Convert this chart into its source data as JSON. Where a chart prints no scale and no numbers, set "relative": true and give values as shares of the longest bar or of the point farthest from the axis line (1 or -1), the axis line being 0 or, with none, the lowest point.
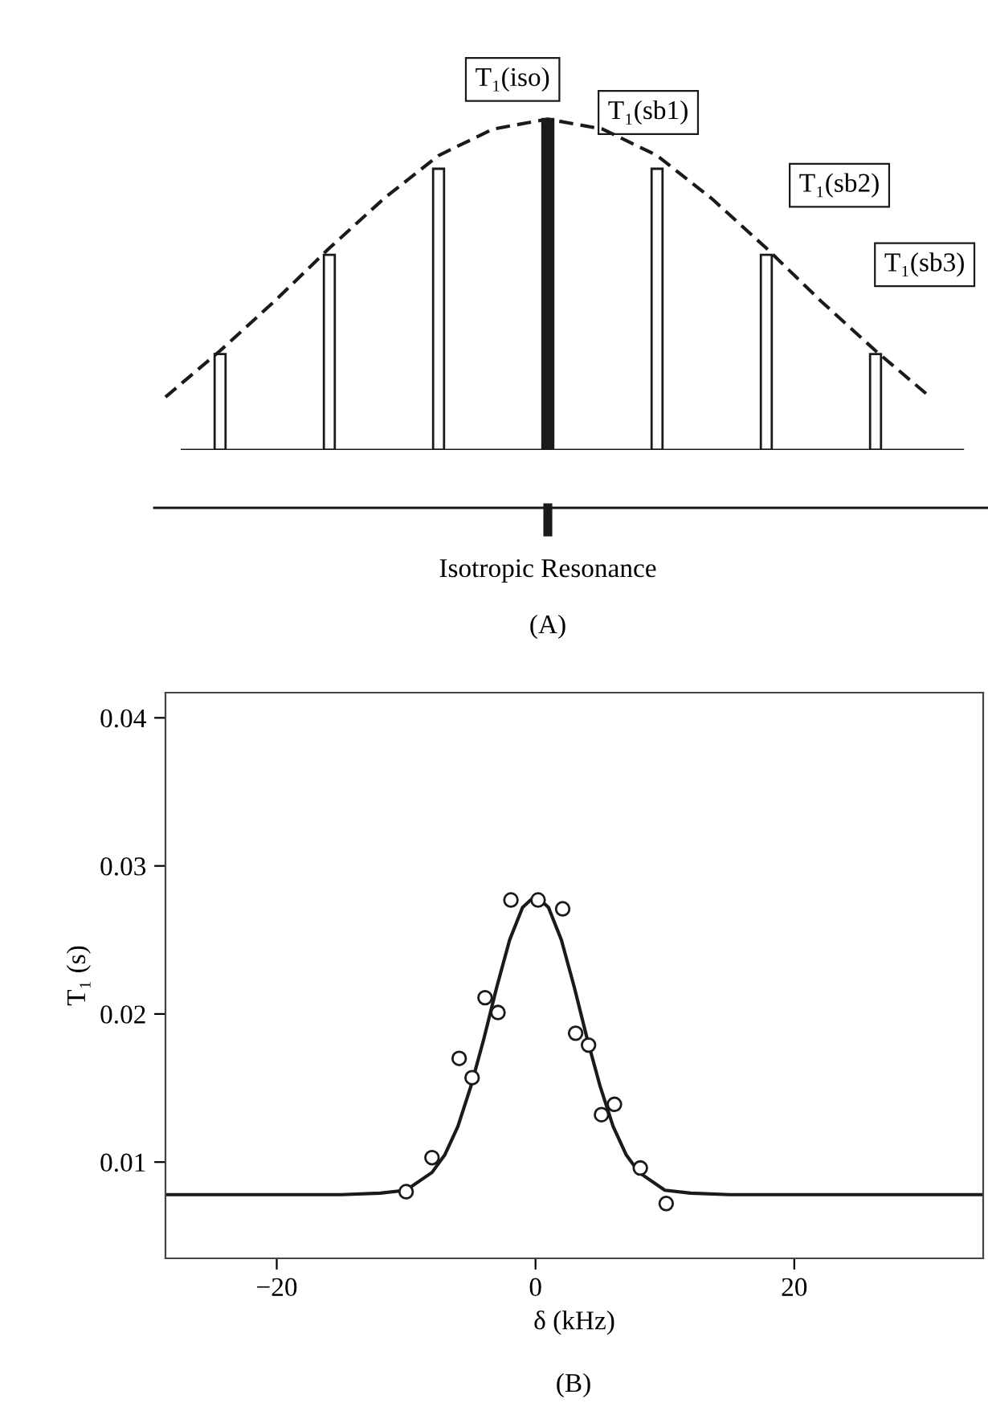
{
  "chart_data": [
    {
      "type": "bar",
      "relative": true,
      "categories": [
        null,
        null,
        null,
        null,
        null,
        null,
        null
      ],
      "colors": [
        "#ffffff",
        "#ffffff",
        "#ffffff",
        "#1a1a1a",
        "#ffffff",
        "#ffffff",
        "#ffffff"
      ],
      "values": [
        0.29,
        0.59,
        0.85,
        1.0,
        0.85,
        0.59,
        0.29
      ],
      "annotations": [
        "T₁(iso)",
        "T₁(sb1)",
        "T₁(sb2)",
        "T₁(sb3)",
        "Isotropic Resonance",
        "(A)"
      ]
    },
    {
      "type": "line",
      "relative": true,
      "categories": [
        null,
        null,
        null,
        null,
        null,
        null,
        null,
        null,
        null,
        null,
        null,
        null,
        null,
        null,
        null
      ],
      "series": [
        {
          "color": "#1a1a1a",
          "values": [
            0.16,
            0.3,
            0.45,
            0.61,
            0.76,
            0.89,
            0.97,
            1.0,
            0.97,
            0.89,
            0.76,
            0.61,
            0.45,
            0.3,
            0.16
          ]
        }
      ],
      "line_style": "dashed",
      "marker": "none"
    },
    {
      "type": "scatter",
      "xlabel": "δ (kHz)",
      "ylabel": "T₁ (s)",
      "xlim": [
        -28.6,
        34.6
      ],
      "ylim": [
        0.0035,
        0.0417
      ],
      "xticks": [
        {
          "value": -20,
          "label": "−20"
        },
        0,
        20
      ],
      "yticks": [
        0.01,
        0.02,
        0.03,
        0.04
      ],
      "series": [
        {
          "type": "scatter",
          "color": "#1a1a1a",
          "marker": "circle",
          "x": [
            -10.0,
            -8.0,
            -5.9,
            -4.9,
            -3.9,
            -2.9,
            -1.9,
            0.2,
            2.1,
            3.1,
            4.1,
            5.1,
            6.1,
            8.1,
            10.1
          ],
          "values": [
            0.008,
            0.0103,
            0.017,
            0.0157,
            0.0211,
            0.0201,
            0.0277,
            0.0277,
            0.0271,
            0.0187,
            0.0179,
            0.0132,
            0.0139,
            0.0096,
            0.0072
          ]
        },
        {
          "type": "line",
          "color": "#1a1a1a",
          "marker": "none",
          "line_style": "solid",
          "x": [
            -28.6,
            -15,
            -12,
            -10,
            -8,
            -7,
            -6,
            -5,
            -4,
            -3,
            -2,
            -1,
            0,
            1,
            2,
            3,
            4,
            5,
            6,
            7,
            8,
            10,
            12,
            15,
            34.6
          ],
          "values": [
            0.0078,
            0.0078,
            0.0079,
            0.0081,
            0.0093,
            0.0105,
            0.0124,
            0.0151,
            0.0183,
            0.0218,
            0.025,
            0.0272,
            0.028,
            0.0272,
            0.025,
            0.0218,
            0.0183,
            0.0151,
            0.0124,
            0.0105,
            0.0093,
            0.0081,
            0.0079,
            0.0078,
            0.0078
          ]
        }
      ],
      "annotations": [
        "(B)"
      ],
      "grid": false
    }
  ]
}
